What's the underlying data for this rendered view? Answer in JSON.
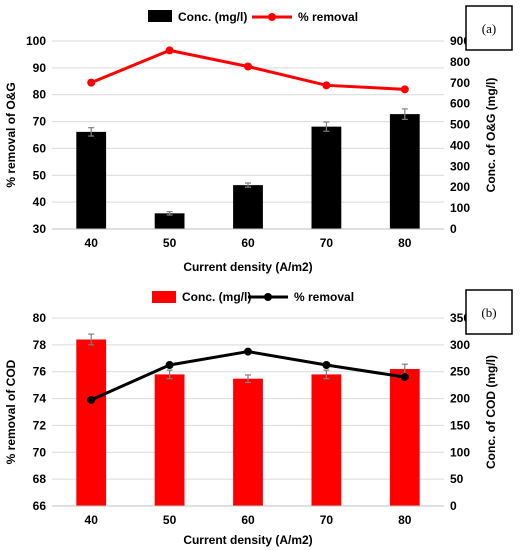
{
  "chart_data": [
    {
      "type": "bar+line",
      "panel_label": "(a)",
      "categories": [
        "40",
        "50",
        "60",
        "70",
        "80"
      ],
      "xlabel": "Current density (A/m2)",
      "bars": {
        "name": "Conc. (mg/l)",
        "color": "#000000",
        "axis": "right",
        "values": [
          465,
          75,
          210,
          490,
          550
        ],
        "errors": [
          20,
          8,
          10,
          22,
          25
        ]
      },
      "line": {
        "name": "% removal",
        "color": "#ff0000",
        "axis": "left",
        "values": [
          84.5,
          96.5,
          90.5,
          83.5,
          82.0
        ]
      },
      "ylabel_left": "% removal of O&G",
      "ylim_left": [
        30,
        100
      ],
      "yticks_left": [
        30,
        40,
        50,
        60,
        70,
        80,
        90,
        100
      ],
      "ylabel_right": "Conc. of O&G (mg/l)",
      "ylim_right": [
        0,
        900
      ],
      "yticks_right": [
        0,
        100,
        200,
        300,
        400,
        500,
        600,
        700,
        800,
        900
      ],
      "grid": true,
      "legend": "top"
    },
    {
      "type": "bar+line",
      "panel_label": "(b)",
      "categories": [
        "40",
        "50",
        "60",
        "70",
        "80"
      ],
      "xlabel": "Current density (A/m2)",
      "bars": {
        "name": "Conc. (mg/l)",
        "color": "#ff0000",
        "axis": "right",
        "values": [
          310,
          245,
          237,
          245,
          255
        ],
        "errors": [
          10,
          8,
          7,
          8,
          9
        ]
      },
      "line": {
        "name": "% removal",
        "color": "#000000",
        "axis": "left",
        "values": [
          73.9,
          76.5,
          77.5,
          76.5,
          75.6
        ]
      },
      "ylabel_left": "% removal of COD",
      "ylim_left": [
        66,
        80
      ],
      "yticks_left": [
        66,
        68,
        70,
        72,
        74,
        76,
        78,
        80
      ],
      "ylabel_right": "Conc. of COD (mg/l)",
      "ylim_right": [
        0,
        350
      ],
      "yticks_right": [
        0,
        50,
        100,
        150,
        200,
        250,
        300,
        350
      ],
      "grid": true,
      "legend": "top"
    }
  ]
}
